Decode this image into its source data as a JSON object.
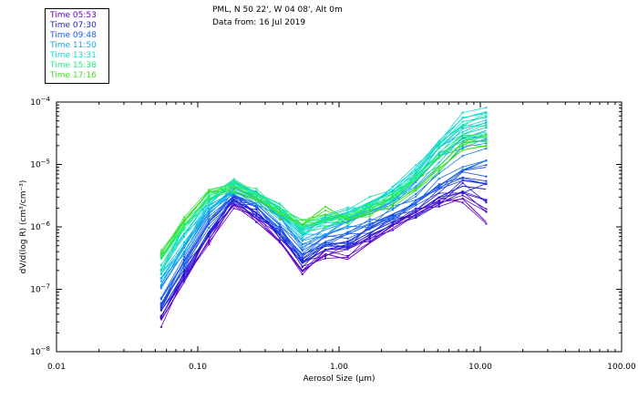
{
  "header": {
    "site_line": "PML, N 50 22', W 04 08', Alt 0m",
    "date_line": "Data from: 16 Jul 2019"
  },
  "legend": [
    {
      "label": "Time 05:53",
      "color": "#6a00c8"
    },
    {
      "label": "Time 07:30",
      "color": "#1c1cd0"
    },
    {
      "label": "Time 09:48",
      "color": "#1a5ee8"
    },
    {
      "label": "Time 11:50",
      "color": "#10a8f0"
    },
    {
      "label": "Time 13:31",
      "color": "#10d8d0"
    },
    {
      "label": "Time 15:38",
      "color": "#20f080"
    },
    {
      "label": "Time 17:16",
      "color": "#40e020"
    }
  ],
  "chart_data": {
    "type": "line",
    "title": "PML, N 50 22', W 04 08', Alt 0m",
    "subtitle": "Data from: 16 Jul 2019",
    "xlabel": "Aerosol Size (µm)",
    "ylabel": "dV/d(log R) (cm³/cm⁻³)",
    "xscale": "log",
    "yscale": "log",
    "xlim": [
      0.01,
      100
    ],
    "ylim_exponents": [
      -8,
      -4
    ],
    "x_tick_labels": [
      "0.01",
      "0.10",
      "1.00",
      "10.00",
      "100.00"
    ],
    "x_tick_values": [
      0.01,
      0.1,
      1,
      10,
      100
    ],
    "y_tick_exponents": [
      -8,
      -7,
      -6,
      -5,
      -4
    ],
    "x": [
      0.055,
      0.08,
      0.12,
      0.18,
      0.26,
      0.38,
      0.55,
      0.8,
      1.15,
      1.65,
      2.4,
      3.5,
      5.1,
      7.5,
      11.0
    ],
    "series": [
      {
        "name": "Time 05:53",
        "color": "#6a00c8",
        "values": [
          3.2e-08,
          1.3e-07,
          6.3e-07,
          2.3e-06,
          1.35e-06,
          5.8e-07,
          1.9e-07,
          3.7e-07,
          3e-07,
          5.5e-07,
          9.5e-07,
          1.6e-06,
          2.5e-06,
          2.8e-06,
          1.2e-06
        ]
      },
      {
        "name": "Time 07:30",
        "color": "#1c1cd0",
        "values": [
          4.5e-08,
          1.8e-07,
          8.5e-07,
          2.7e-06,
          1.7e-06,
          7.5e-07,
          2.6e-07,
          4.3e-07,
          5.2e-07,
          8.1e-07,
          1.2e-06,
          1.7e-06,
          3e-06,
          4.5e-06,
          4e-06
        ]
      },
      {
        "name": "Time 09:48",
        "color": "#1a5ee8",
        "values": [
          7e-08,
          2.8e-07,
          1.2e-06,
          3.2e-06,
          2.1e-06,
          9.5e-07,
          3.5e-07,
          5.8e-07,
          7.6e-07,
          1.1e-06,
          1.6e-06,
          2.4e-06,
          4.6e-06,
          8e-06,
          9e-06
        ]
      },
      {
        "name": "Time 11:50",
        "color": "#10a8f0",
        "values": [
          1.2e-07,
          4.6e-07,
          1.9e-06,
          4.1e-06,
          2.9e-06,
          1.4e-06,
          6.2e-07,
          9e-07,
          1.2e-06,
          1.7e-06,
          2.6e-06,
          5.3e-06,
          1.3e-05,
          2.6e-05,
          3.5e-05
        ]
      },
      {
        "name": "Time 13:31",
        "color": "#10d8d0",
        "values": [
          2.1e-07,
          7.5e-07,
          2.6e-06,
          4.9e-06,
          3.6e-06,
          1.9e-06,
          8.6e-07,
          1.3e-06,
          1.7e-06,
          2.5e-06,
          3.8e-06,
          8.8e-06,
          2.4e-05,
          5.5e-05,
          7e-05
        ]
      },
      {
        "name": "Time 15:38",
        "color": "#20f080",
        "values": [
          3e-07,
          1e-06,
          3.1e-06,
          4.6e-06,
          3.3e-06,
          2.1e-06,
          9.9e-07,
          1.2e-06,
          1.5e-06,
          2.1e-06,
          3e-06,
          5.8e-06,
          1.3e-05,
          2.7e-05,
          3.3e-05
        ]
      },
      {
        "name": "Time 17:16",
        "color": "#40e020",
        "values": [
          3.7e-07,
          1.3e-06,
          3.6e-06,
          4.4e-06,
          2.9e-06,
          1.6e-06,
          1.1e-06,
          2.1e-06,
          1.3e-06,
          1.6e-06,
          2.3e-06,
          4.1e-06,
          8.5e-06,
          1.7e-05,
          2e-05
        ]
      }
    ]
  }
}
